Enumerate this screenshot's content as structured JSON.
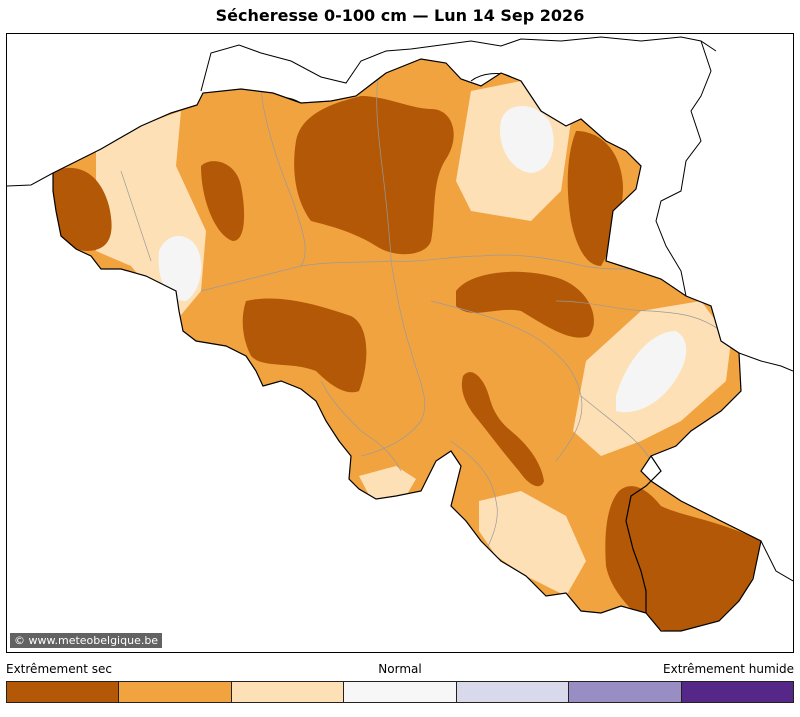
{
  "title": "Sécheresse 0-100 cm  —  Lun 14 Sep 2026",
  "credit": "© www.meteobelgique.be",
  "legend": {
    "left_label": "Extrêmement sec",
    "middle_label": "Normal",
    "right_label": "Extrêmement humide",
    "colors": [
      "#b35806",
      "#f1a340",
      "#fee0b6",
      "#f7f7f7",
      "#d8daeb",
      "#998ec3",
      "#542788"
    ]
  },
  "map": {
    "country": "Belgium",
    "palette": {
      "extreme_dry": "#b35806",
      "dry": "#f1a340",
      "moderate_dry": "#fee0b6",
      "normal": "#f5f5f5"
    }
  }
}
